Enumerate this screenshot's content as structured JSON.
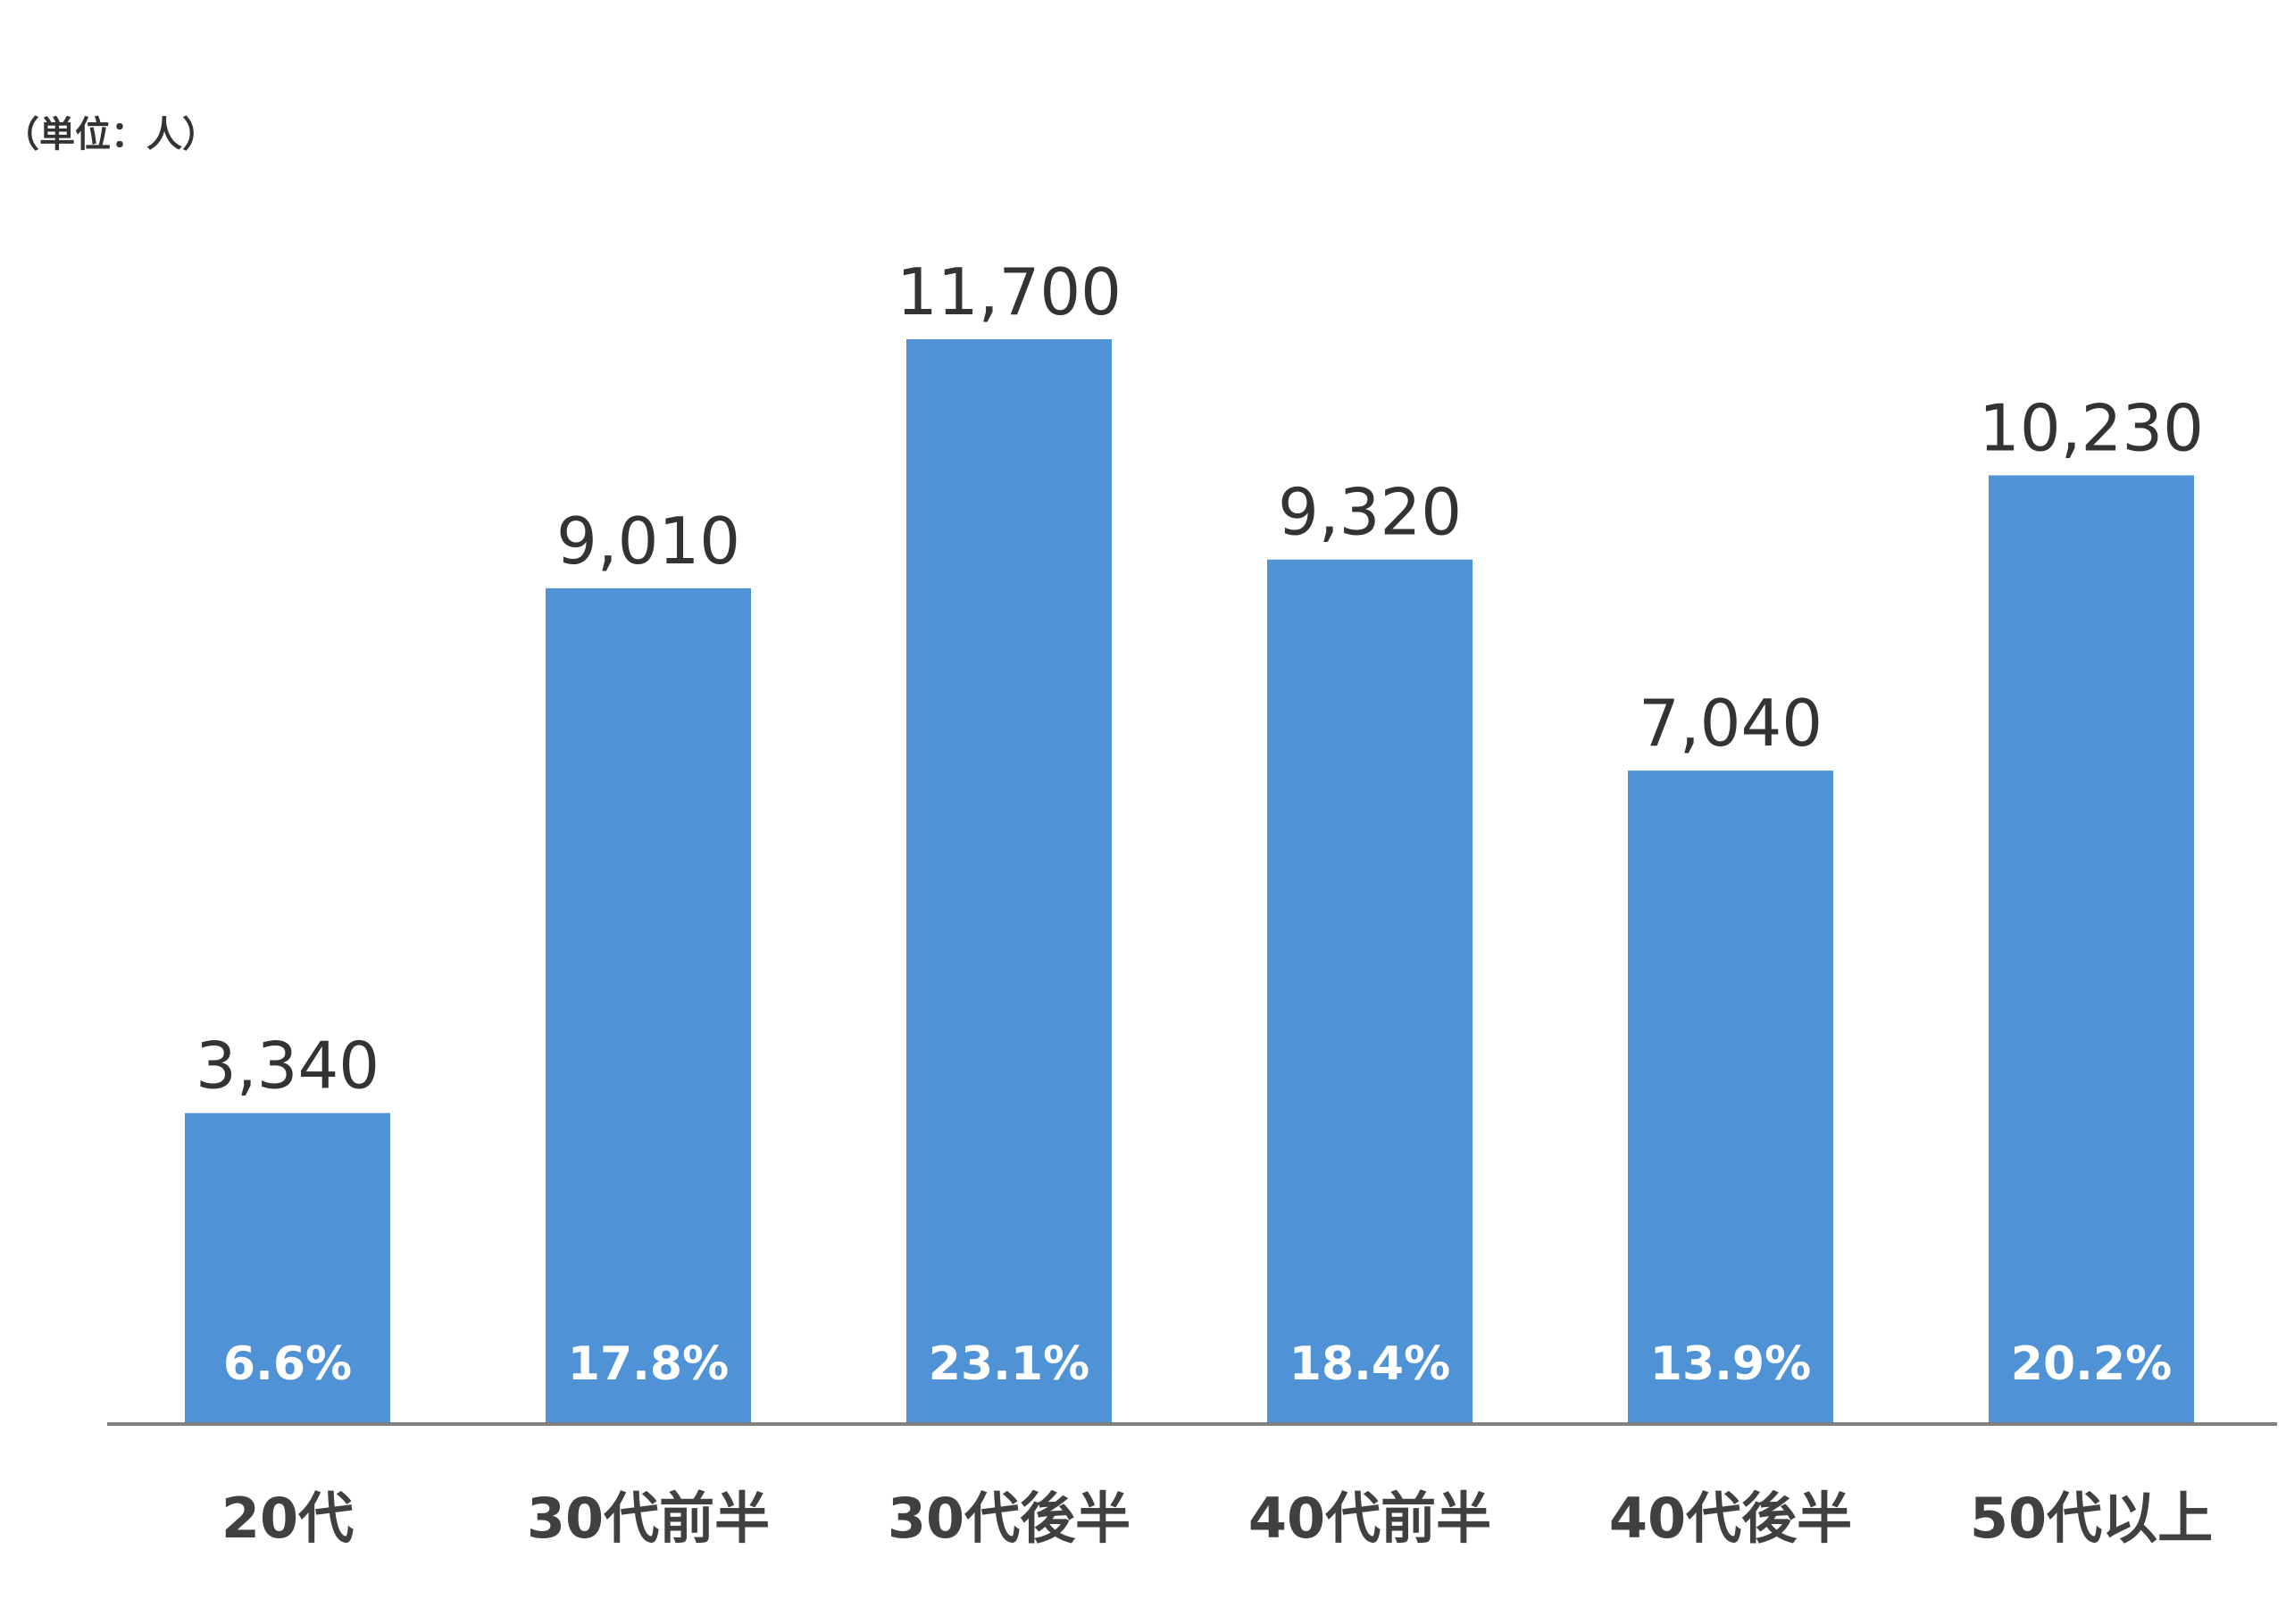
{
  "chart_data": {
    "type": "bar",
    "unit_label": "（単位：人）",
    "categories": [
      "20代",
      "30代前半",
      "30代後半",
      "40代前半",
      "40代後半",
      "50代以上"
    ],
    "values": [
      3340,
      9010,
      11700,
      9320,
      7040,
      10230
    ],
    "value_labels": [
      "3,340",
      "9,010",
      "11,700",
      "9,320",
      "7,040",
      "10,230"
    ],
    "percent_labels": [
      "6.6%",
      "17.8%",
      "23.1%",
      "18.4%",
      "13.9%",
      "20.2%"
    ],
    "ylim": [
      0,
      12000
    ],
    "grid": false,
    "legend": "none",
    "bar_color": "#4f93d6",
    "axis_color": "#808080"
  }
}
